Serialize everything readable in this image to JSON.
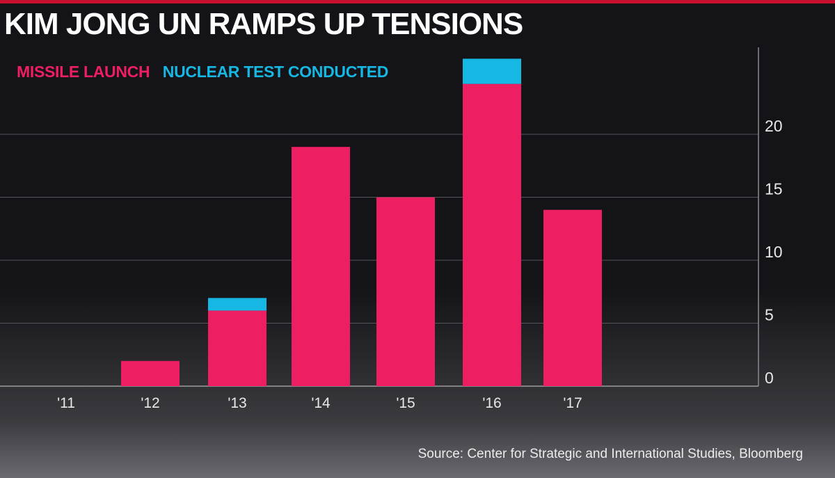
{
  "header": {
    "title": "KIM JONG UN RAMPS UP TENSIONS"
  },
  "footer": {
    "source": "Source: Center for Strategic and International Studies, Bloomberg"
  },
  "colors": {
    "missile": "#ee1e63",
    "nuclear": "#16b7e3",
    "background": "#141418",
    "text": "#ffffff"
  },
  "chart_data": {
    "type": "bar",
    "stacked": true,
    "title": "KIM JONG UN RAMPS UP TENSIONS",
    "categories": [
      "'11",
      "'12",
      "'13",
      "'14",
      "'15",
      "'16",
      "'17"
    ],
    "series": [
      {
        "name": "MISSILE LAUNCH",
        "color": "#ee1e63",
        "values": [
          0,
          2,
          6,
          19,
          15,
          24,
          14
        ]
      },
      {
        "name": "NUCLEAR TEST CONDUCTED",
        "color": "#16b7e3",
        "values": [
          0,
          0,
          1,
          0,
          0,
          2,
          0
        ]
      }
    ],
    "y_ticks": [
      "0",
      "5",
      "10",
      "15",
      "20"
    ],
    "ylim": [
      0,
      25
    ],
    "xlabel": "",
    "ylabel": "",
    "grid": true,
    "y_axis_position": "right",
    "legend_position": "top-left"
  }
}
